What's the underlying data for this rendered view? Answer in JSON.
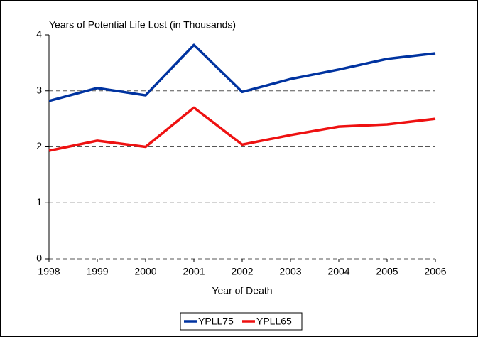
{
  "chart_data": {
    "type": "line",
    "title": "Years of Potential Life Lost (in Thousands)",
    "x_label": "Year of Death",
    "x": [
      1998,
      1999,
      2000,
      2001,
      2002,
      2003,
      2004,
      2005,
      2006
    ],
    "xlim": [
      1998,
      2006
    ],
    "xticks": [
      1998,
      1999,
      2000,
      2001,
      2002,
      2003,
      2004,
      2005,
      2006
    ],
    "ylim": [
      0,
      4
    ],
    "yticks": [
      0,
      1,
      2,
      3,
      4
    ],
    "grid": true,
    "legend": "bottom",
    "series": [
      {
        "name": "YPLL75",
        "color": "#0033a0",
        "values": [
          2.82,
          3.05,
          2.92,
          3.82,
          2.98,
          3.21,
          3.38,
          3.57,
          3.67
        ]
      },
      {
        "name": "YPLL65",
        "color": "#ee1111",
        "values": [
          1.93,
          2.11,
          2.0,
          2.7,
          2.04,
          2.21,
          2.36,
          2.4,
          2.5
        ]
      }
    ]
  }
}
